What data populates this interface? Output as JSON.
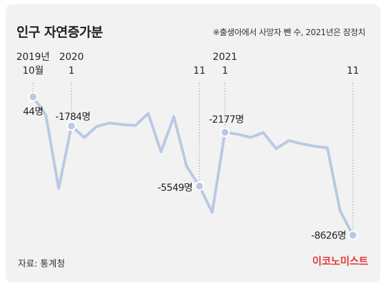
{
  "header": {
    "title": "인구 자연증가분",
    "note": "※출생아에서 사망자 뺀 수, 2021년은 잠정치"
  },
  "footer": {
    "source": "자료: 통계청",
    "brand": "이코노미스트"
  },
  "colors": {
    "line": "#b9c9e3",
    "marker": "#b9c9e3",
    "brand": "#e03a3a",
    "guide": "#9aa0a6"
  },
  "chart_data": {
    "type": "line",
    "title": "인구 자연증가분",
    "xlabel": "",
    "ylabel": "",
    "grid": false,
    "ylim": [
      -9000,
      500
    ],
    "x": [
      "2019-10",
      "2019-11",
      "2019-12",
      "2020-01",
      "2020-02",
      "2020-03",
      "2020-04",
      "2020-05",
      "2020-06",
      "2020-07",
      "2020-08",
      "2020-09",
      "2020-10",
      "2020-11",
      "2020-12",
      "2021-01",
      "2021-02",
      "2021-03",
      "2021-04",
      "2021-05",
      "2021-06",
      "2021-07",
      "2021-08",
      "2021-09",
      "2021-10",
      "2021-11"
    ],
    "values": [
      44,
      -1100,
      -5700,
      -1784,
      -2500,
      -1800,
      -1600,
      -1700,
      -1750,
      -1000,
      -3400,
      -1200,
      -4300,
      -5549,
      -7200,
      -2177,
      -2300,
      -2500,
      -2200,
      -3200,
      -2700,
      -2900,
      -3050,
      -3150,
      -7100,
      -8626
    ],
    "tick_labels": [
      {
        "index": 0,
        "lines": [
          "2019년",
          "10월"
        ]
      },
      {
        "index": 3,
        "lines": [
          "2020",
          "1"
        ]
      },
      {
        "index": 13,
        "lines": [
          "",
          "11"
        ]
      },
      {
        "index": 15,
        "lines": [
          "2021",
          "1"
        ]
      },
      {
        "index": 25,
        "lines": [
          "",
          "11"
        ]
      }
    ],
    "annotations": [
      {
        "index": 0,
        "text": "44명"
      },
      {
        "index": 3,
        "text": "-1784명"
      },
      {
        "index": 13,
        "text": "-5549명"
      },
      {
        "index": 15,
        "text": "-2177명"
      },
      {
        "index": 25,
        "text": "-8626명"
      }
    ]
  }
}
